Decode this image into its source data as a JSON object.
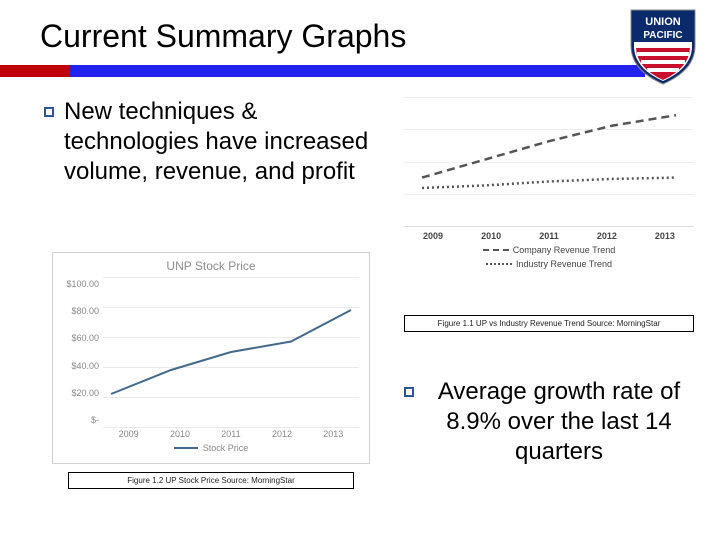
{
  "title": "Current Summary Graphs",
  "logo": {
    "top_text": "UNION",
    "bottom_text": "PACIFIC",
    "shield_blue": "#0a2a6b",
    "shield_red": "#c8102e",
    "shield_white": "#ffffff"
  },
  "divider": {
    "main_color": "#2222ee",
    "accent_color": "#c00000"
  },
  "bullets": {
    "b1": "New techniques & technologies have increased volume, revenue, and profit",
    "b2": "Average growth rate of 8.9% over the last 14 quarters"
  },
  "trend_chart": {
    "type": "line",
    "years": [
      "2009",
      "2010",
      "2011",
      "2012",
      "2013"
    ],
    "series": [
      {
        "name": "Company Revenue Trend",
        "dash": "8,5",
        "color": "#555555",
        "width": 2.5,
        "values": [
          38,
          52,
          66,
          78,
          86
        ]
      },
      {
        "name": "Industry Revenue Trend",
        "dash": "2,3",
        "color": "#555555",
        "width": 2.5,
        "values": [
          30,
          32,
          35,
          37,
          38
        ]
      }
    ],
    "ylim": [
      0,
      100
    ],
    "grid_lines": 4,
    "grid_color": "#eeeeee",
    "caption": "Figure 1.1 UP vs Industry Revenue Trend Source: MorningStar"
  },
  "stock_chart": {
    "type": "line",
    "title": "UNP Stock Price",
    "years": [
      "2009",
      "2010",
      "2011",
      "2012",
      "2013"
    ],
    "yticks": [
      "$100.00",
      "$80.00",
      "$60.00",
      "$40.00",
      "$20.00",
      "$-"
    ],
    "ylim": [
      0,
      100
    ],
    "series": {
      "name": "Stock Price",
      "color": "#44698a",
      "width": 2,
      "values": [
        22,
        38,
        50,
        57,
        78
      ]
    },
    "grid_color": "#eaeaea",
    "title_color": "#8c8c8c",
    "tick_color": "#888888",
    "caption": "Figure 1.2 UP Stock Price Source: MorningStar"
  }
}
